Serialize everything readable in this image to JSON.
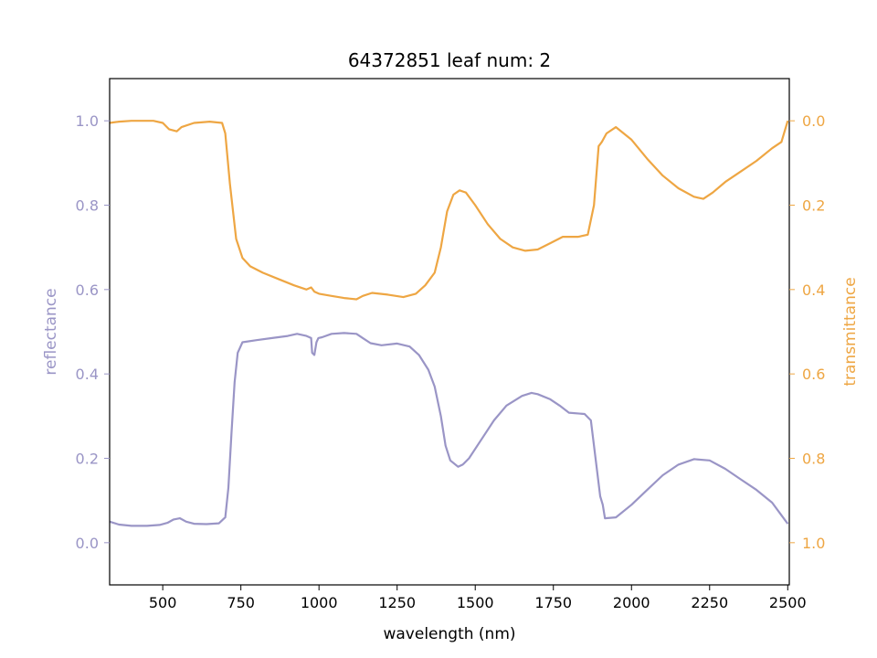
{
  "chart_data": {
    "type": "line",
    "title": "64372851 leaf num: 2",
    "xlabel": "wavelength (nm)",
    "xlim": [
      330,
      2505
    ],
    "x_ticks": [
      500,
      750,
      1000,
      1250,
      1500,
      1750,
      2000,
      2250,
      2500
    ],
    "y_left": {
      "label": "reflectance",
      "lim": [
        -0.1,
        1.1
      ],
      "ticks": [
        "0.0",
        "0.2",
        "0.4",
        "0.6",
        "0.8",
        "1.0"
      ],
      "color": "#9a95c6"
    },
    "y_right": {
      "label": "transmittance",
      "lim": [
        1.1,
        -0.1
      ],
      "inverted": true,
      "ticks": [
        "0.0",
        "0.2",
        "0.4",
        "0.6",
        "0.8",
        "1.0"
      ],
      "color": "#eea643"
    },
    "grid": false,
    "series": [
      {
        "axis": "left",
        "color": "#9a95c6",
        "points": [
          [
            330,
            0.05
          ],
          [
            360,
            0.043
          ],
          [
            400,
            0.04
          ],
          [
            450,
            0.04
          ],
          [
            490,
            0.042
          ],
          [
            515,
            0.047
          ],
          [
            535,
            0.055
          ],
          [
            555,
            0.058
          ],
          [
            575,
            0.05
          ],
          [
            600,
            0.045
          ],
          [
            640,
            0.044
          ],
          [
            680,
            0.046
          ],
          [
            700,
            0.06
          ],
          [
            710,
            0.13
          ],
          [
            720,
            0.26
          ],
          [
            730,
            0.38
          ],
          [
            740,
            0.45
          ],
          [
            755,
            0.475
          ],
          [
            800,
            0.48
          ],
          [
            850,
            0.485
          ],
          [
            900,
            0.49
          ],
          [
            930,
            0.495
          ],
          [
            960,
            0.49
          ],
          [
            975,
            0.485
          ],
          [
            978,
            0.45
          ],
          [
            985,
            0.445
          ],
          [
            992,
            0.475
          ],
          [
            998,
            0.485
          ],
          [
            1010,
            0.487
          ],
          [
            1040,
            0.495
          ],
          [
            1080,
            0.497
          ],
          [
            1120,
            0.495
          ],
          [
            1140,
            0.485
          ],
          [
            1165,
            0.473
          ],
          [
            1200,
            0.468
          ],
          [
            1250,
            0.472
          ],
          [
            1290,
            0.465
          ],
          [
            1320,
            0.445
          ],
          [
            1350,
            0.41
          ],
          [
            1370,
            0.37
          ],
          [
            1390,
            0.3
          ],
          [
            1405,
            0.23
          ],
          [
            1420,
            0.195
          ],
          [
            1445,
            0.18
          ],
          [
            1460,
            0.185
          ],
          [
            1480,
            0.2
          ],
          [
            1520,
            0.245
          ],
          [
            1560,
            0.29
          ],
          [
            1600,
            0.325
          ],
          [
            1650,
            0.348
          ],
          [
            1680,
            0.355
          ],
          [
            1700,
            0.352
          ],
          [
            1740,
            0.34
          ],
          [
            1770,
            0.325
          ],
          [
            1800,
            0.308
          ],
          [
            1850,
            0.305
          ],
          [
            1870,
            0.29
          ],
          [
            1885,
            0.2
          ],
          [
            1900,
            0.11
          ],
          [
            1908,
            0.09
          ],
          [
            1915,
            0.058
          ],
          [
            1950,
            0.06
          ],
          [
            2000,
            0.09
          ],
          [
            2050,
            0.125
          ],
          [
            2100,
            0.16
          ],
          [
            2150,
            0.185
          ],
          [
            2200,
            0.198
          ],
          [
            2250,
            0.195
          ],
          [
            2300,
            0.175
          ],
          [
            2350,
            0.15
          ],
          [
            2400,
            0.125
          ],
          [
            2450,
            0.095
          ],
          [
            2480,
            0.065
          ],
          [
            2500,
            0.045
          ]
        ]
      },
      {
        "axis": "right",
        "color": "#eea643",
        "points": [
          [
            330,
            0.005
          ],
          [
            360,
            0.002
          ],
          [
            400,
            0.0
          ],
          [
            470,
            0.0
          ],
          [
            500,
            0.005
          ],
          [
            520,
            0.02
          ],
          [
            545,
            0.025
          ],
          [
            560,
            0.015
          ],
          [
            600,
            0.005
          ],
          [
            650,
            0.002
          ],
          [
            690,
            0.005
          ],
          [
            700,
            0.03
          ],
          [
            715,
            0.15
          ],
          [
            735,
            0.28
          ],
          [
            755,
            0.325
          ],
          [
            780,
            0.345
          ],
          [
            820,
            0.36
          ],
          [
            870,
            0.375
          ],
          [
            920,
            0.39
          ],
          [
            960,
            0.4
          ],
          [
            975,
            0.395
          ],
          [
            985,
            0.405
          ],
          [
            1000,
            0.41
          ],
          [
            1040,
            0.415
          ],
          [
            1080,
            0.42
          ],
          [
            1120,
            0.423
          ],
          [
            1140,
            0.415
          ],
          [
            1170,
            0.408
          ],
          [
            1220,
            0.412
          ],
          [
            1270,
            0.418
          ],
          [
            1310,
            0.41
          ],
          [
            1340,
            0.39
          ],
          [
            1370,
            0.36
          ],
          [
            1390,
            0.3
          ],
          [
            1410,
            0.215
          ],
          [
            1430,
            0.175
          ],
          [
            1450,
            0.165
          ],
          [
            1470,
            0.17
          ],
          [
            1500,
            0.2
          ],
          [
            1540,
            0.245
          ],
          [
            1580,
            0.28
          ],
          [
            1620,
            0.3
          ],
          [
            1660,
            0.308
          ],
          [
            1700,
            0.305
          ],
          [
            1740,
            0.29
          ],
          [
            1780,
            0.275
          ],
          [
            1830,
            0.275
          ],
          [
            1860,
            0.27
          ],
          [
            1880,
            0.2
          ],
          [
            1895,
            0.06
          ],
          [
            1905,
            0.05
          ],
          [
            1920,
            0.03
          ],
          [
            1950,
            0.015
          ],
          [
            2000,
            0.045
          ],
          [
            2050,
            0.09
          ],
          [
            2100,
            0.13
          ],
          [
            2150,
            0.16
          ],
          [
            2200,
            0.18
          ],
          [
            2230,
            0.185
          ],
          [
            2260,
            0.17
          ],
          [
            2300,
            0.145
          ],
          [
            2350,
            0.12
          ],
          [
            2400,
            0.095
          ],
          [
            2450,
            0.065
          ],
          [
            2480,
            0.05
          ],
          [
            2500,
            0.0
          ]
        ]
      }
    ]
  }
}
